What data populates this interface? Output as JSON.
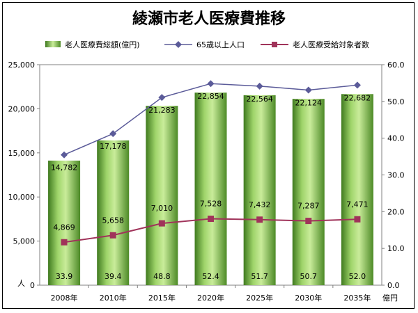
{
  "chart_data": {
    "type": "bar",
    "title": "綾瀬市老人医療費推移",
    "categories": [
      "2008年",
      "2010年",
      "2015年",
      "2020年",
      "2025年",
      "2030年",
      "2035年"
    ],
    "series": [
      {
        "name": "老人医療費総額(億円)",
        "type": "bar",
        "axis": "right",
        "unit": "億円",
        "values": [
          33.9,
          39.4,
          48.8,
          52.4,
          51.7,
          50.7,
          52.0
        ],
        "color": "#7ab648"
      },
      {
        "name": "65歳以上人口",
        "type": "line",
        "axis": "left",
        "values": [
          14782,
          17178,
          21283,
          22854,
          22564,
          22124,
          22682
        ],
        "color": "#5b5b99"
      },
      {
        "name": "老人医療受給対象者数",
        "type": "line",
        "axis": "left",
        "values": [
          4869,
          5658,
          7010,
          7528,
          7432,
          7287,
          7471
        ],
        "color": "#a0335a"
      }
    ],
    "left_axis": {
      "unit": "人",
      "ylim": [
        0,
        25000
      ],
      "ticks": [
        "0",
        "5,000",
        "10,000",
        "15,000",
        "20,000",
        "25,000"
      ]
    },
    "right_axis": {
      "unit": "億円",
      "ylim": [
        0,
        60
      ],
      "ticks": [
        "0.0",
        "10.0",
        "20.0",
        "30.0",
        "40.0",
        "50.0",
        "60.0"
      ]
    },
    "bar_labels": [
      "33.9",
      "39.4",
      "48.8",
      "52.4",
      "51.7",
      "50.7",
      "52.0"
    ],
    "pop_labels": [
      "14,782",
      "17,178",
      "21,283",
      "22,854",
      "22,564",
      "22,124",
      "22,682"
    ],
    "recipient_labels": [
      "4,869",
      "5,658",
      "7,010",
      "7,528",
      "7,432",
      "7,287",
      "7,471"
    ],
    "legend_position": "top",
    "grid": false
  }
}
